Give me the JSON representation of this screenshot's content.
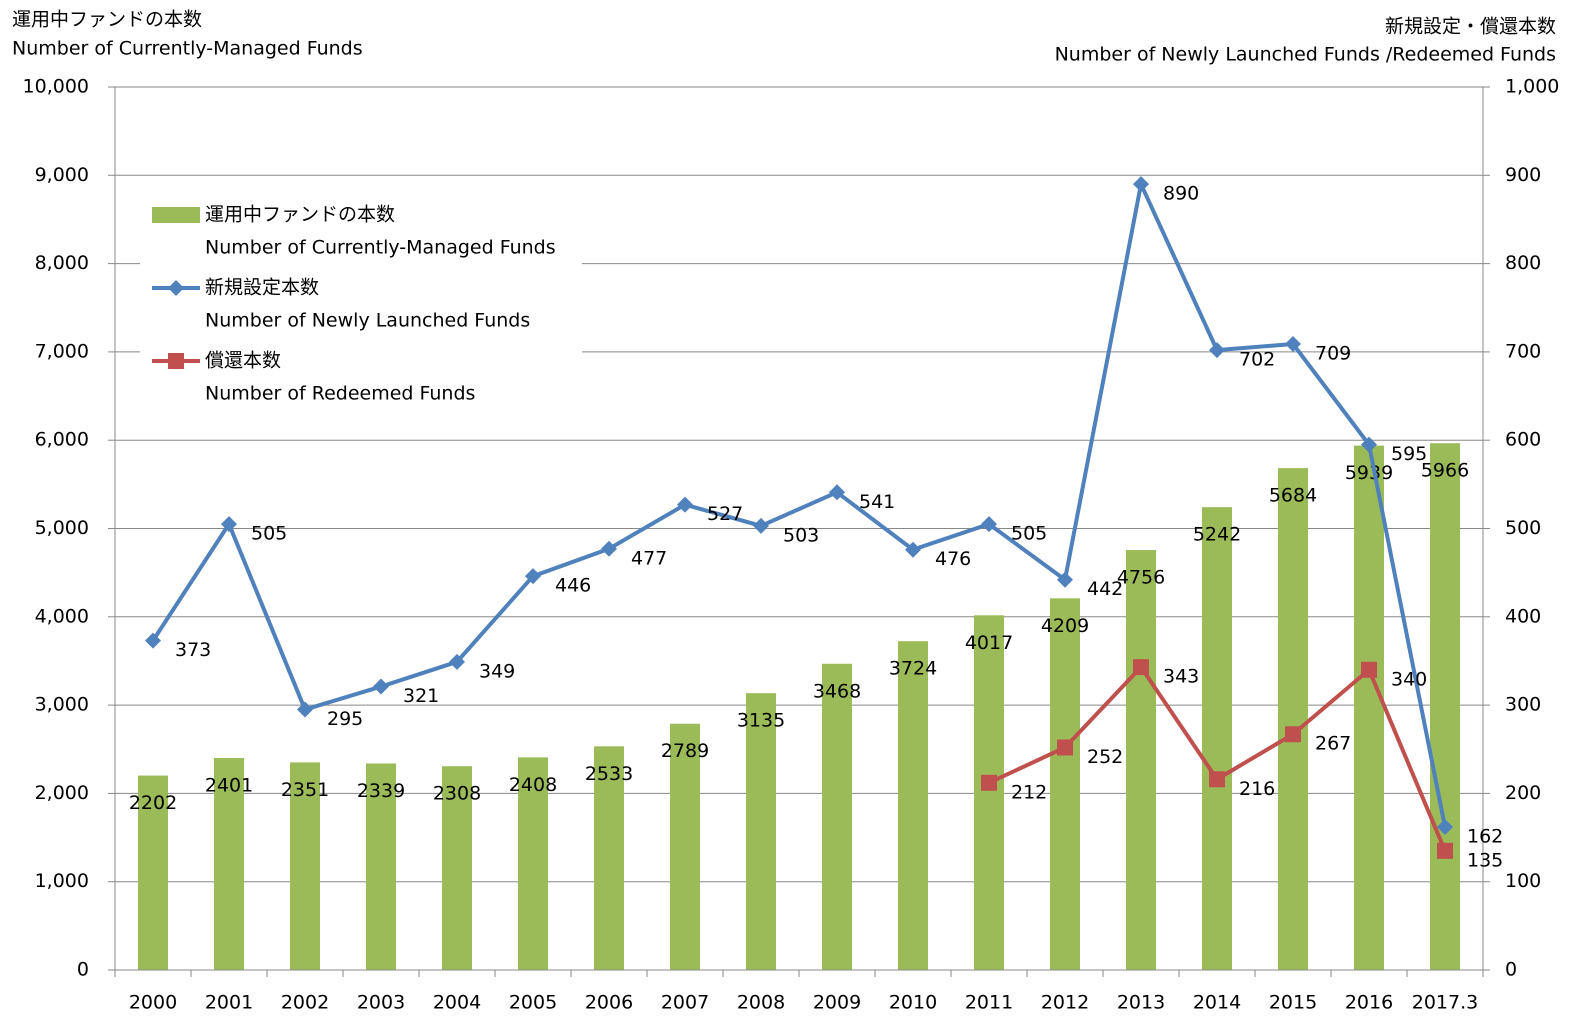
{
  "chart_data": {
    "type": "bar",
    "y_title": "運用中ファンドの本数",
    "y_title_en": "Number  of Currently-Managed Funds",
    "y2_title": "新規設定・償還本数",
    "y2_title_en": "Number  of Newly Launched Funds /Redeemed  Funds",
    "categories": [
      "2000",
      "2001",
      "2002",
      "2003",
      "2004",
      "2005",
      "2006",
      "2007",
      "2008",
      "2009",
      "2010",
      "2011",
      "2012",
      "2013",
      "2014",
      "2015",
      "2016",
      "2017.3"
    ],
    "series": [
      {
        "name": "運用中ファンドの本数",
        "name_en": "Number  of Currently-Managed Funds",
        "type": "bar",
        "color": "#9bbb59",
        "values": [
          2202,
          2401,
          2351,
          2339,
          2308,
          2408,
          2533,
          2789,
          3135,
          3468,
          3724,
          4017,
          4209,
          4756,
          5242,
          5684,
          5939,
          5966
        ]
      },
      {
        "name": "新規設定本数",
        "name_en": "Number  of Newly Launched Funds",
        "type": "line",
        "marker": "diamond",
        "color": "#4f81bd",
        "axis": "y2",
        "values": [
          373,
          505,
          295,
          321,
          349,
          446,
          477,
          527,
          503,
          541,
          476,
          505,
          442,
          890,
          702,
          709,
          595,
          162
        ]
      },
      {
        "name": "償還本数",
        "name_en": "Number  of Redeemed  Funds",
        "type": "line",
        "marker": "square",
        "color": "#c0504d",
        "axis": "y2",
        "values": [
          null,
          null,
          null,
          null,
          null,
          null,
          null,
          null,
          null,
          null,
          null,
          212,
          252,
          343,
          216,
          267,
          340,
          135
        ]
      }
    ],
    "ylim": [
      0,
      10000
    ],
    "yticks": [
      0,
      {
        "value": 1000,
        "label": "1,000"
      },
      {
        "value": 2000,
        "label": "2,000"
      },
      {
        "value": 3000,
        "label": "3,000"
      },
      {
        "value": 4000,
        "label": "4,000"
      },
      {
        "value": 5000,
        "label": "5,000"
      },
      {
        "value": 6000,
        "label": "6,000"
      },
      {
        "value": 7000,
        "label": "7,000"
      },
      {
        "value": 8000,
        "label": "8,000"
      },
      {
        "value": 9000,
        "label": "9,000"
      },
      {
        "value": 10000,
        "label": "10,000"
      }
    ],
    "y2lim": [
      0,
      1000
    ],
    "y2ticks": [
      0,
      100,
      200,
      300,
      400,
      500,
      600,
      700,
      800,
      900,
      {
        "value": 1000,
        "label": "1,000"
      }
    ],
    "grid": true,
    "legend": "upper left"
  }
}
